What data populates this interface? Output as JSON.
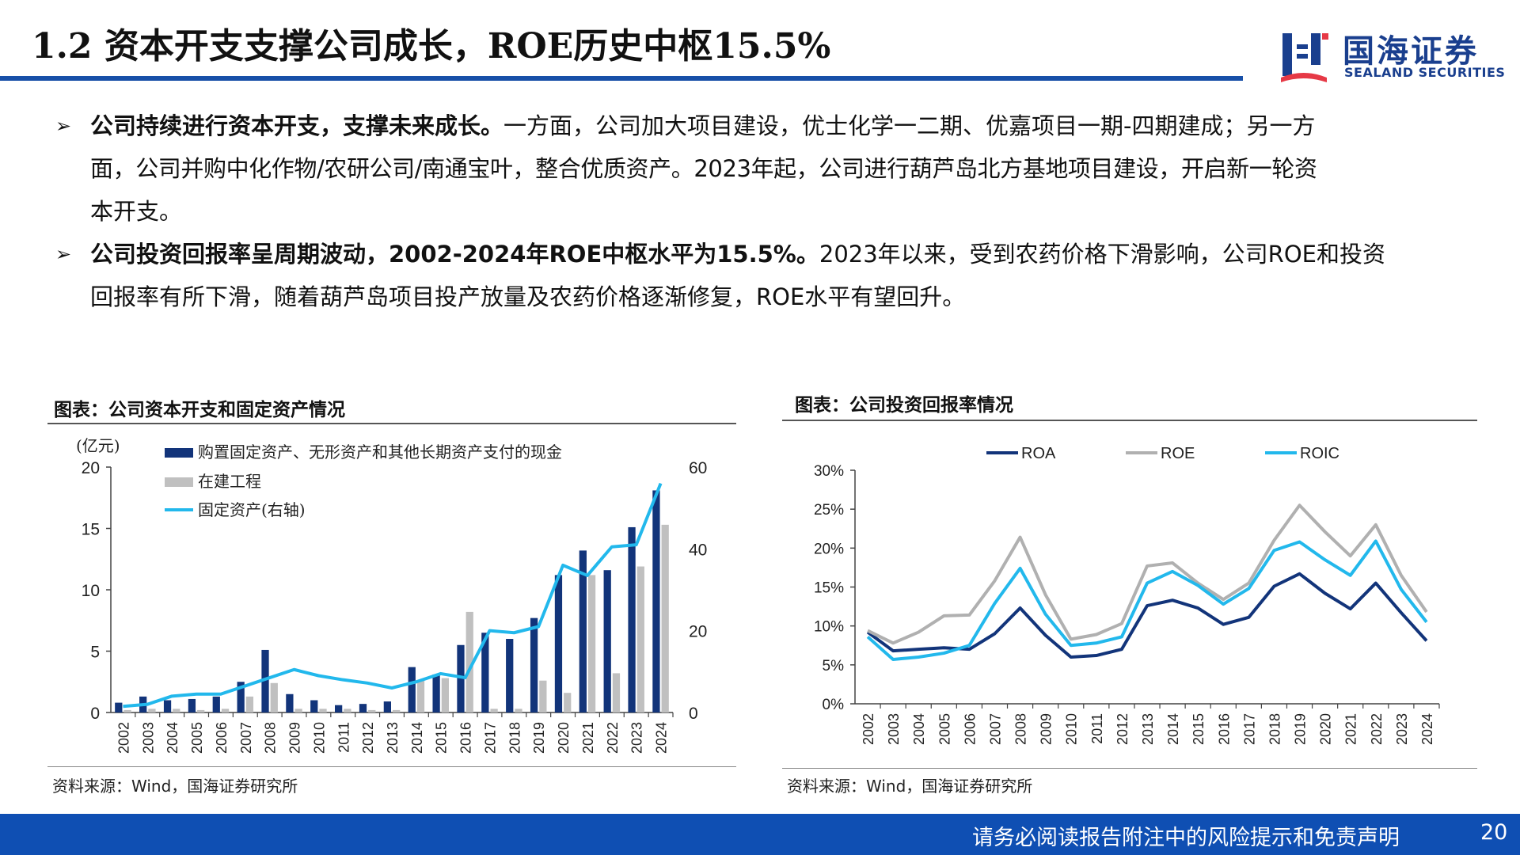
{
  "header": {
    "title": "1.2 资本开支支撑公司成长，ROE历史中枢15.5%",
    "logo_cn": "国海证券",
    "logo_en": "SEALAND SECURITIES"
  },
  "bullets": [
    {
      "bold": "公司持续进行资本开支，支撑未来成长。",
      "lines": [
        "一方面，公司加大项目建设，优士化学一二期、优嘉项目一期-四期建成；另一方",
        "面，公司并购中化作物/农研公司/南通宝叶，整合优质资产。2023年起，公司进行葫芦岛北方基地项目建设，开启新一轮资",
        "本开支。"
      ]
    },
    {
      "bold": "公司投资回报率呈周期波动，2002-2024年ROE中枢水平为15.5%。",
      "lines": [
        "2023年以来，受到农药价格下滑影响，公司ROE和投资",
        "回报率有所下滑，随着葫芦岛项目投产放量及农药价格逐渐修复，ROE水平有望回升。"
      ]
    }
  ],
  "left_panel": {
    "title": "图表：公司资本开支和固定资产情况",
    "source": "资料来源：Wind，国海证券研究所"
  },
  "right_panel": {
    "title": "图表：公司投资回报率情况",
    "source": "资料来源：Wind，国海证券研究所"
  },
  "chart_data": [
    {
      "type": "bar",
      "unit_label": "(亿元)",
      "categories": [
        "2002",
        "2003",
        "2004",
        "2005",
        "2006",
        "2007",
        "2008",
        "2009",
        "2010",
        "2011",
        "2012",
        "2013",
        "2014",
        "2015",
        "2016",
        "2017",
        "2018",
        "2019",
        "2020",
        "2021",
        "2022",
        "2023",
        "2024"
      ],
      "series": [
        {
          "name": "购置固定资产、无形资产和其他长期资产支付的现金",
          "kind": "bar",
          "axis": "left",
          "color": "#12347a",
          "values": [
            0.8,
            1.3,
            1.0,
            1.1,
            1.3,
            2.5,
            5.1,
            1.5,
            1.0,
            0.6,
            0.7,
            0.9,
            3.7,
            3.1,
            5.5,
            6.5,
            6.0,
            7.7,
            11.2,
            13.2,
            11.6,
            15.1,
            18.1
          ]
        },
        {
          "name": "在建工程",
          "kind": "bar",
          "axis": "left",
          "color": "#c0c0c0",
          "values": [
            0.2,
            0.3,
            0.3,
            0.2,
            0.3,
            1.3,
            2.4,
            0.3,
            0.3,
            0.3,
            0.2,
            0.2,
            2.6,
            2.8,
            8.2,
            0.3,
            0.3,
            2.6,
            1.6,
            11.2,
            3.2,
            11.9,
            15.3
          ]
        },
        {
          "name": "固定资产(右轴)",
          "kind": "line",
          "axis": "right",
          "color": "#22b8ec",
          "values": [
            1.5,
            2.0,
            4.0,
            4.5,
            4.5,
            6.5,
            8.5,
            10.5,
            9.0,
            8.0,
            7.2,
            6.0,
            7.5,
            9.5,
            8.5,
            20.0,
            19.5,
            21.0,
            36.0,
            33.5,
            40.5,
            41.0,
            56.0
          ]
        }
      ],
      "ylim_left": [
        0,
        20
      ],
      "yticks_left": [
        0,
        5,
        10,
        15,
        20
      ],
      "ylim_right": [
        0,
        60
      ],
      "yticks_right": [
        0,
        20,
        40,
        60
      ],
      "legend": "top-left"
    },
    {
      "type": "line",
      "categories": [
        "2002",
        "2003",
        "2004",
        "2005",
        "2006",
        "2007",
        "2008",
        "2009",
        "2010",
        "2011",
        "2012",
        "2013",
        "2014",
        "2015",
        "2016",
        "2017",
        "2018",
        "2019",
        "2020",
        "2021",
        "2022",
        "2023",
        "2024"
      ],
      "series": [
        {
          "name": "ROA",
          "color": "#12347a",
          "values": [
            9.2,
            6.8,
            7.0,
            7.2,
            7.0,
            9.0,
            12.3,
            8.8,
            6.0,
            6.2,
            7.0,
            12.6,
            13.3,
            12.3,
            10.2,
            11.1,
            15.1,
            16.7,
            14.2,
            12.2,
            15.5,
            11.7,
            8.1
          ]
        },
        {
          "name": "ROE",
          "color": "#b0b0b0",
          "values": [
            9.4,
            7.8,
            9.2,
            11.3,
            11.4,
            15.8,
            21.4,
            14.0,
            8.3,
            8.9,
            10.3,
            17.7,
            18.1,
            15.5,
            13.4,
            15.5,
            21.0,
            25.5,
            22.1,
            19.0,
            23.0,
            16.5,
            11.8
          ]
        },
        {
          "name": "ROIC",
          "color": "#22b8ec",
          "values": [
            8.6,
            5.7,
            6.0,
            6.5,
            7.5,
            12.9,
            17.4,
            11.5,
            7.5,
            7.8,
            8.6,
            15.5,
            17.0,
            15.2,
            12.8,
            14.8,
            19.7,
            20.8,
            18.5,
            16.5,
            20.9,
            14.7,
            10.5
          ]
        }
      ],
      "ylim": [
        0,
        30
      ],
      "yticks": [
        "0%",
        "5%",
        "10%",
        "15%",
        "20%",
        "25%",
        "30%"
      ],
      "legend": "top"
    }
  ],
  "footer": {
    "disclaimer": "请务必阅读报告附注中的风险提示和免责声明",
    "page": "20"
  }
}
